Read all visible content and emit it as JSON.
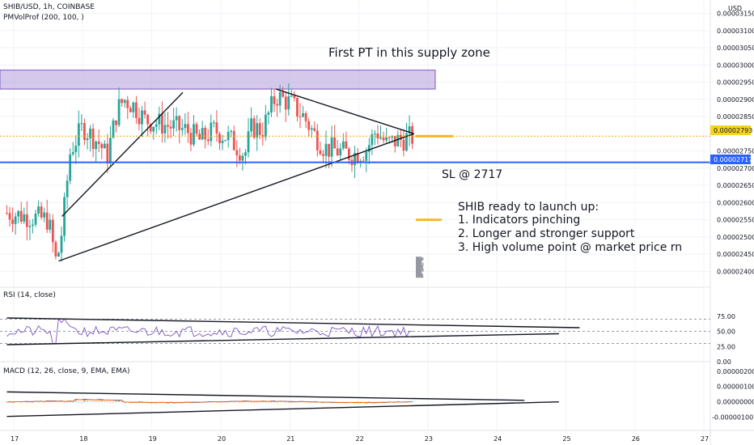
{
  "header": {
    "symbol": "SHIB/USD, 1h, COINBASE",
    "indicator": "PMVolProf (200, 100, )",
    "currency": "USD"
  },
  "rsi": {
    "label": "RSI (14, close)"
  },
  "macd": {
    "label": "MACD (12, 26, close, 9, EMA, EMA)"
  },
  "annotations": {
    "supply_zone": "First PT in this supply zone",
    "stop_loss": "SL @ 2717",
    "thesis_title": "SHIB ready to launch up:",
    "thesis_1": "1. Indicators pinching",
    "thesis_2": "2. Longer and stronger support",
    "thesis_3": "3. High volume point @ market price rn"
  },
  "colors": {
    "up": "#26a69a",
    "down": "#ef5350",
    "zone_fill": "#b39ddb",
    "zone_border": "#7e57c2",
    "sl_line": "#2962ff",
    "price_line": "#f7a600",
    "rsi_line": "#7e57c2",
    "macd_line": "#2962ff",
    "signal_line": "#ff6d00",
    "volume_profile": "#9598a1"
  },
  "chart_data": [
    {
      "type": "candlestick",
      "timeframe": "1h",
      "x_ticks": [
        "17",
        "18",
        "19",
        "20",
        "21",
        "22",
        "23",
        "24",
        "25",
        "26",
        "27"
      ],
      "y_ticks": [
        "0.00003150",
        "0.00003100",
        "0.00003050",
        "0.00003000",
        "0.00002950",
        "0.00002900",
        "0.00002850",
        "0.00002750",
        "0.00002700",
        "0.00002650",
        "0.00002600",
        "0.00002550",
        "0.00002500",
        "0.00002450",
        "0.00002400"
      ],
      "ylim": [
        2.375e-05,
        3.17e-05
      ],
      "current_price": "0.00002793",
      "stop_loss_price": "0.00002717",
      "supply_zone": [
        2.93e-05,
        2.985e-05
      ],
      "close_path": [
        [
          16.9,
          2.57e-05
        ],
        [
          17.2,
          2.56e-05
        ],
        [
          17.5,
          2.55e-05
        ],
        [
          17.62,
          2.42e-05
        ],
        [
          17.7,
          2.52e-05
        ],
        [
          17.82,
          2.75e-05
        ],
        [
          18.0,
          2.82e-05
        ],
        [
          18.25,
          2.77e-05
        ],
        [
          18.35,
          2.73e-05
        ],
        [
          18.5,
          2.87e-05
        ],
        [
          18.6,
          2.9e-05
        ],
        [
          18.75,
          2.88e-05
        ],
        [
          18.9,
          2.84e-05
        ],
        [
          19.1,
          2.83e-05
        ],
        [
          19.3,
          2.82e-05
        ],
        [
          19.5,
          2.81e-05
        ],
        [
          19.7,
          2.78e-05
        ],
        [
          19.9,
          2.81e-05
        ],
        [
          20.1,
          2.79e-05
        ],
        [
          20.35,
          2.74e-05
        ],
        [
          20.45,
          2.82e-05
        ],
        [
          20.6,
          2.81e-05
        ],
        [
          20.8,
          2.91e-05
        ],
        [
          21.0,
          2.89e-05
        ],
        [
          21.2,
          2.85e-05
        ],
        [
          21.35,
          2.8e-05
        ],
        [
          21.5,
          2.76e-05
        ],
        [
          21.7,
          2.75e-05
        ],
        [
          21.9,
          2.74e-05
        ],
        [
          22.1,
          2.75e-05
        ],
        [
          22.25,
          2.81e-05
        ],
        [
          22.4,
          2.77e-05
        ],
        [
          22.55,
          2.78e-05
        ],
        [
          22.75,
          2.79e-05
        ]
      ],
      "trendlines": [
        {
          "name": "early-support",
          "from": [
            17.7,
            2.56e-05
          ],
          "to": [
            19.45,
            2.92e-05
          ]
        },
        {
          "name": "long-support",
          "from": [
            17.65,
            2.43e-05
          ],
          "to": [
            22.8,
            2.8e-05
          ]
        },
        {
          "name": "resistance",
          "from": [
            20.8,
            2.93e-05
          ],
          "to": [
            22.8,
            2.8e-05
          ]
        }
      ]
    },
    {
      "type": "line",
      "name": "RSI",
      "y_ticks": [
        "75.00",
        "50.00",
        "25.00",
        "0.00"
      ],
      "ylim": [
        0,
        100
      ],
      "levels": [
        70,
        50,
        30
      ],
      "trendlines": [
        {
          "from": [
            16.9,
            72
          ],
          "to": [
            25.2,
            56
          ]
        },
        {
          "from": [
            16.9,
            28
          ],
          "to": [
            24.9,
            46
          ]
        }
      ]
    },
    {
      "type": "bar",
      "name": "MACD",
      "y_ticks": [
        "0.00000200",
        "0.00000100",
        "0.00000000",
        "-0.00000100"
      ],
      "ylim": [
        -1.6e-06,
        2.2e-06
      ],
      "trendlines": [
        {
          "from": [
            16.9,
            6.5e-07
          ],
          "to": [
            24.4,
            1e-07
          ]
        },
        {
          "from": [
            16.9,
            -9.5e-07
          ],
          "to": [
            24.9,
            0.0
          ]
        }
      ]
    }
  ]
}
